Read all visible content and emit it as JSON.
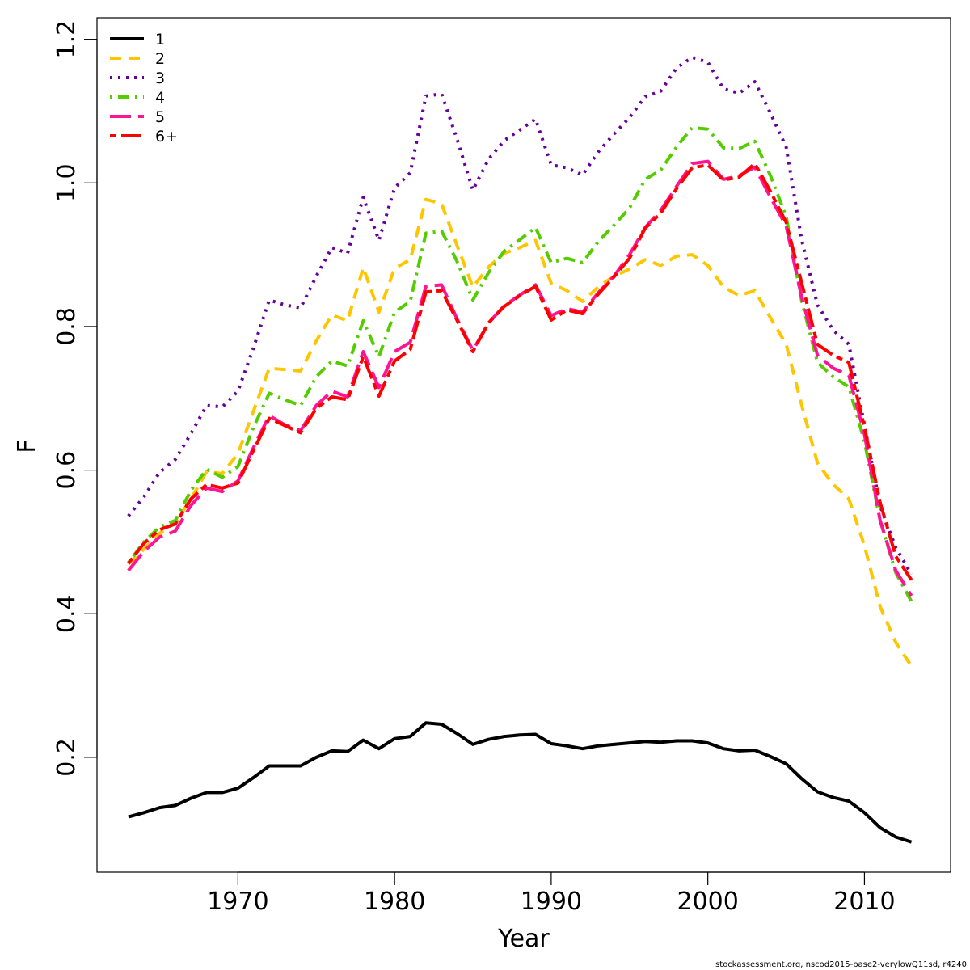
{
  "chart_data": {
    "type": "line",
    "xlabel": "Year",
    "ylabel": "F",
    "xlim": [
      1961,
      2015.5
    ],
    "ylim": [
      0.04,
      1.23
    ],
    "x_ticks": [
      1970,
      1980,
      1990,
      2000,
      2010
    ],
    "y_ticks": [
      0.2,
      0.4,
      0.6,
      0.8,
      1.0,
      1.2
    ],
    "x_tick_labels": [
      "1970",
      "1980",
      "1990",
      "2000",
      "2010"
    ],
    "y_tick_labels": [
      "0.2",
      "0.4",
      "0.6",
      "0.8",
      "1.0",
      "1.2"
    ],
    "legend_position": "top-left",
    "grid": false,
    "x": [
      1963,
      1964,
      1965,
      1966,
      1967,
      1968,
      1969,
      1970,
      1971,
      1972,
      1973,
      1974,
      1975,
      1976,
      1977,
      1978,
      1979,
      1980,
      1981,
      1982,
      1983,
      1984,
      1985,
      1986,
      1987,
      1988,
      1989,
      1990,
      1991,
      1992,
      1993,
      1994,
      1995,
      1996,
      1997,
      1998,
      1999,
      2000,
      2001,
      2002,
      2003,
      2004,
      2005,
      2006,
      2007,
      2008,
      2009,
      2010,
      2011,
      2012,
      2013
    ],
    "series": [
      {
        "name": "1",
        "color": "#000000",
        "dash": "solid",
        "values": [
          0.117,
          0.123,
          0.13,
          0.133,
          0.143,
          0.151,
          0.151,
          0.157,
          0.172,
          0.188,
          0.188,
          0.188,
          0.2,
          0.209,
          0.208,
          0.224,
          0.212,
          0.226,
          0.229,
          0.248,
          0.246,
          0.233,
          0.218,
          0.225,
          0.229,
          0.231,
          0.232,
          0.219,
          0.216,
          0.212,
          0.216,
          0.218,
          0.22,
          0.222,
          0.221,
          0.223,
          0.223,
          0.22,
          0.212,
          0.209,
          0.21,
          0.201,
          0.191,
          0.17,
          0.152,
          0.144,
          0.139,
          0.123,
          0.102,
          0.089,
          0.082
        ]
      },
      {
        "name": "2",
        "color": "#FFC600",
        "dash": "dashed",
        "values": [
          0.469,
          0.49,
          0.512,
          0.527,
          0.56,
          0.598,
          0.595,
          0.623,
          0.683,
          0.742,
          0.74,
          0.738,
          0.78,
          0.816,
          0.808,
          0.882,
          0.82,
          0.881,
          0.893,
          0.977,
          0.971,
          0.912,
          0.855,
          0.883,
          0.902,
          0.91,
          0.92,
          0.86,
          0.85,
          0.835,
          0.855,
          0.87,
          0.88,
          0.893,
          0.885,
          0.898,
          0.9,
          0.885,
          0.855,
          0.843,
          0.85,
          0.812,
          0.775,
          0.69,
          0.61,
          0.58,
          0.56,
          0.495,
          0.41,
          0.36,
          0.327
        ]
      },
      {
        "name": "3",
        "color": "#660099",
        "dash": "dotted",
        "values": [
          0.536,
          0.563,
          0.597,
          0.615,
          0.651,
          0.69,
          0.688,
          0.71,
          0.771,
          0.837,
          0.83,
          0.826,
          0.87,
          0.91,
          0.902,
          0.98,
          0.92,
          0.993,
          1.014,
          1.121,
          1.124,
          1.06,
          0.99,
          1.033,
          1.059,
          1.074,
          1.089,
          1.025,
          1.021,
          1.011,
          1.043,
          1.068,
          1.091,
          1.12,
          1.128,
          1.16,
          1.175,
          1.168,
          1.131,
          1.125,
          1.141,
          1.097,
          1.05,
          0.92,
          0.83,
          0.795,
          0.775,
          0.663,
          0.55,
          0.492,
          0.455
        ]
      },
      {
        "name": "4",
        "color": "#55CC00",
        "dash": "dotdash",
        "values": [
          0.471,
          0.5,
          0.521,
          0.53,
          0.572,
          0.601,
          0.59,
          0.605,
          0.66,
          0.707,
          0.698,
          0.69,
          0.73,
          0.752,
          0.745,
          0.808,
          0.758,
          0.82,
          0.835,
          0.93,
          0.933,
          0.89,
          0.837,
          0.875,
          0.905,
          0.921,
          0.938,
          0.889,
          0.895,
          0.889,
          0.918,
          0.941,
          0.965,
          1.005,
          1.018,
          1.05,
          1.077,
          1.075,
          1.049,
          1.048,
          1.058,
          1.01,
          0.953,
          0.835,
          0.75,
          0.73,
          0.716,
          0.64,
          0.53,
          0.457,
          0.417
        ]
      },
      {
        "name": "5",
        "color": "#FF1493",
        "dash": "longdash",
        "values": [
          0.46,
          0.487,
          0.507,
          0.515,
          0.551,
          0.575,
          0.57,
          0.585,
          0.632,
          0.676,
          0.663,
          0.655,
          0.69,
          0.71,
          0.702,
          0.765,
          0.715,
          0.765,
          0.778,
          0.856,
          0.858,
          0.81,
          0.767,
          0.805,
          0.829,
          0.844,
          0.858,
          0.815,
          0.825,
          0.82,
          0.847,
          0.87,
          0.9,
          0.938,
          0.962,
          0.995,
          1.027,
          1.03,
          1.005,
          1.01,
          1.022,
          0.98,
          0.94,
          0.84,
          0.76,
          0.742,
          0.732,
          0.65,
          0.53,
          0.46,
          0.425
        ]
      },
      {
        "name": "6+",
        "color": "#FF0000",
        "dash": "twodash",
        "values": [
          0.47,
          0.498,
          0.517,
          0.525,
          0.56,
          0.58,
          0.575,
          0.582,
          0.628,
          0.672,
          0.662,
          0.652,
          0.686,
          0.702,
          0.698,
          0.758,
          0.703,
          0.752,
          0.768,
          0.848,
          0.85,
          0.808,
          0.765,
          0.805,
          0.828,
          0.843,
          0.856,
          0.809,
          0.823,
          0.818,
          0.845,
          0.869,
          0.895,
          0.937,
          0.958,
          0.992,
          1.021,
          1.025,
          1.004,
          1.008,
          1.027,
          0.988,
          0.945,
          0.86,
          0.775,
          0.76,
          0.75,
          0.66,
          0.555,
          0.48,
          0.447
        ]
      }
    ]
  },
  "footer": {
    "text": "stockassessment.org, nscod2015-base2-verylowQ11sd, r4240"
  }
}
